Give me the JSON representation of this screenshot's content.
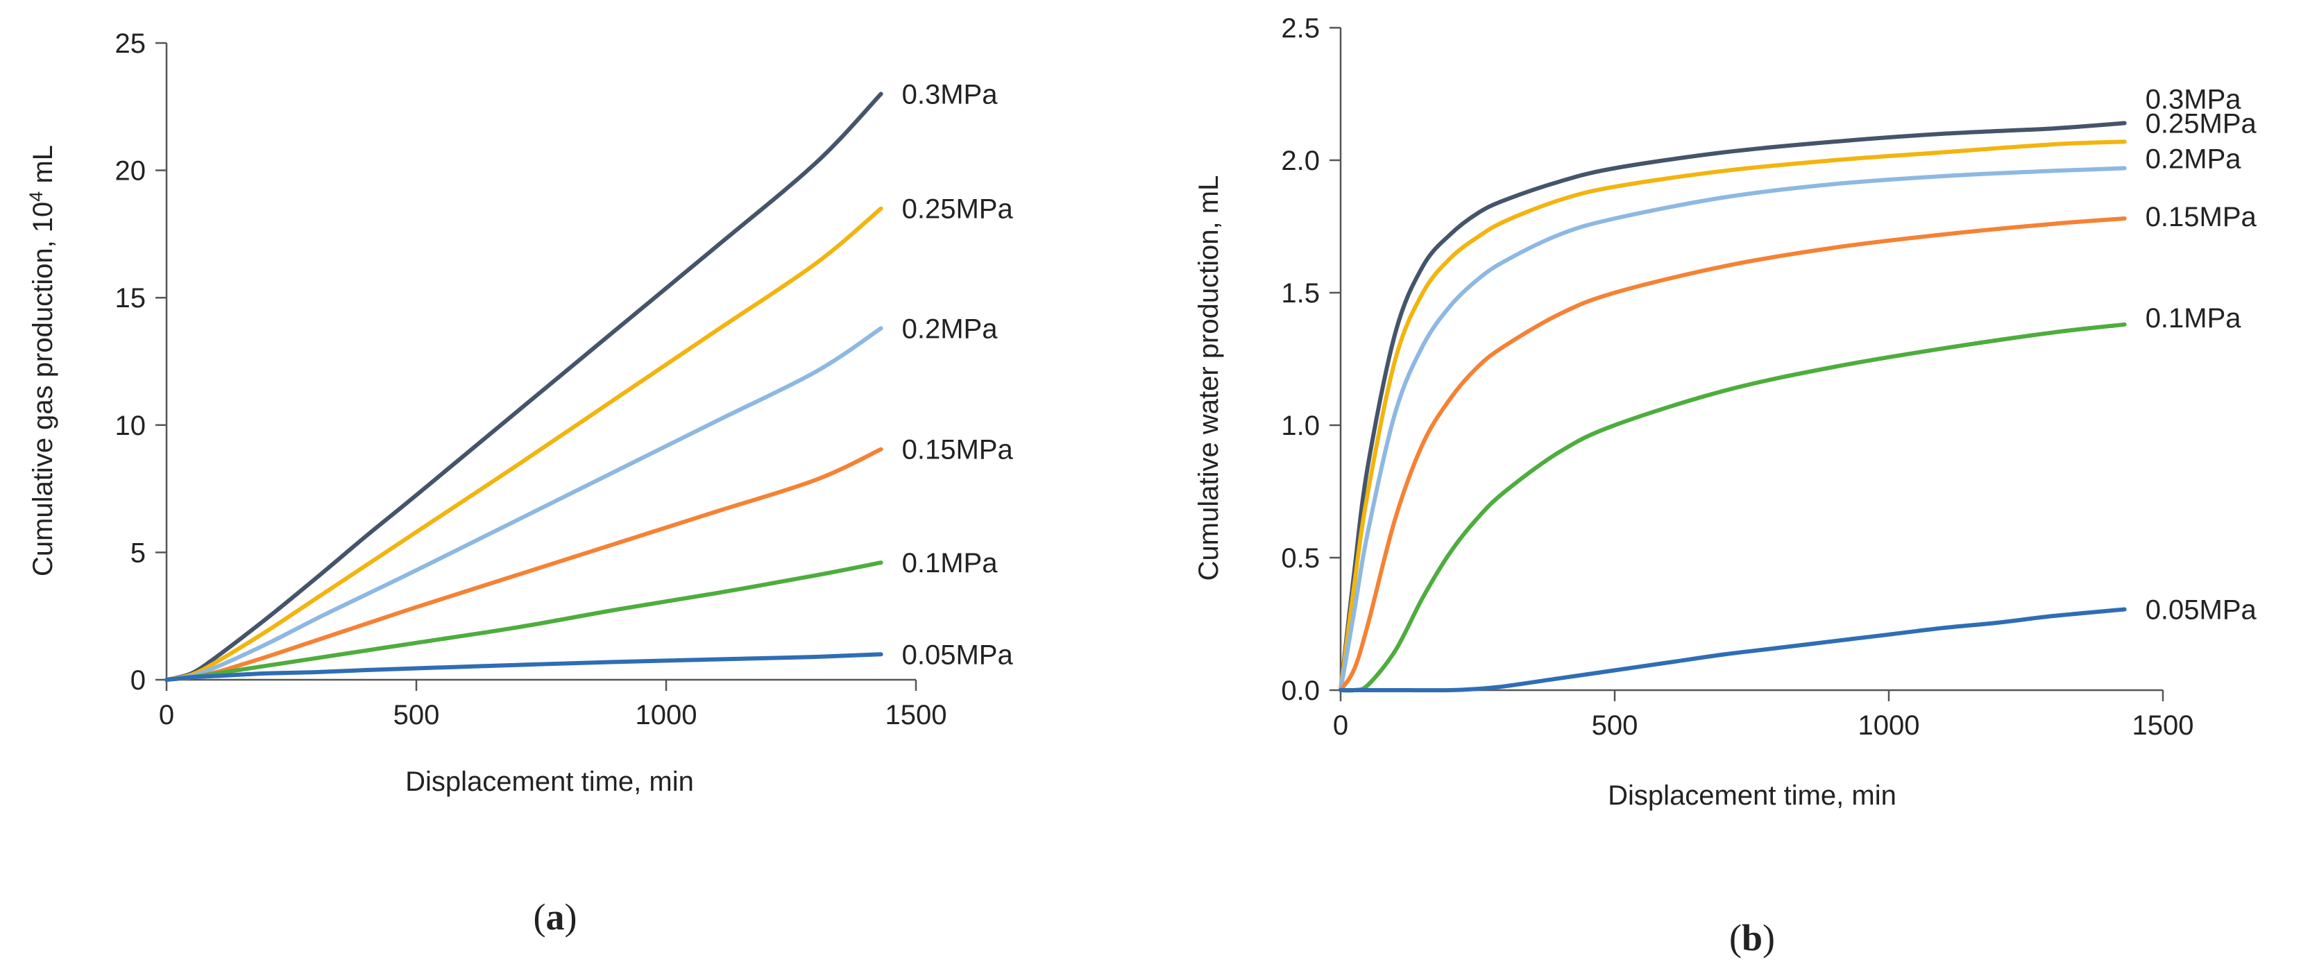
{
  "chart_data": [
    {
      "type": "line",
      "panel": "a",
      "panel_label": {
        "open": "(",
        "letter": "a",
        "close": ")"
      },
      "title": "",
      "xlabel": "Displacement time, min",
      "ylabel": {
        "prefix": "Cumulative gas production, 10",
        "sup": "4",
        "suffix": " mL"
      },
      "xlim": [
        0,
        1500
      ],
      "ylim": [
        0,
        25
      ],
      "xticks": [
        0,
        500,
        1000,
        1500
      ],
      "yticks": [
        0,
        5,
        10,
        15,
        20,
        25
      ],
      "xtick_labels": [
        "0",
        "500",
        "1000",
        "1500"
      ],
      "ytick_labels": [
        "0",
        "5",
        "10",
        "15",
        "20",
        "25"
      ],
      "grid": false,
      "legend": "inline labels at line ends (right)",
      "series": [
        {
          "name": "0.3MPa",
          "color": "#44546A",
          "x": [
            0,
            50,
            100,
            200,
            300,
            400,
            500,
            700,
            900,
            1100,
            1300,
            1430
          ],
          "y": [
            0,
            0.25,
            0.9,
            2.4,
            4.0,
            5.65,
            7.25,
            10.5,
            13.75,
            17.0,
            20.3,
            23.0
          ]
        },
        {
          "name": "0.25MPa",
          "color": "#F2B40E",
          "x": [
            0,
            50,
            100,
            200,
            300,
            400,
            500,
            700,
            900,
            1100,
            1300,
            1430
          ],
          "y": [
            0,
            0.2,
            0.7,
            1.9,
            3.2,
            4.5,
            5.8,
            8.4,
            11.05,
            13.7,
            16.35,
            18.5
          ]
        },
        {
          "name": "0.2MPa",
          "color": "#8DB8E2",
          "x": [
            0,
            50,
            100,
            200,
            300,
            400,
            500,
            700,
            900,
            1100,
            1300,
            1430
          ],
          "y": [
            0,
            0.15,
            0.5,
            1.4,
            2.4,
            3.35,
            4.3,
            6.25,
            8.2,
            10.15,
            12.1,
            13.8
          ]
        },
        {
          "name": "0.15MPa",
          "color": "#F58234",
          "x": [
            0,
            50,
            100,
            200,
            300,
            400,
            500,
            700,
            900,
            1100,
            1300,
            1430
          ],
          "y": [
            0,
            0.1,
            0.3,
            0.9,
            1.55,
            2.2,
            2.85,
            4.1,
            5.35,
            6.6,
            7.85,
            9.05
          ]
        },
        {
          "name": "0.1MPa",
          "color": "#4DAD3D",
          "x": [
            0,
            50,
            100,
            200,
            300,
            400,
            500,
            700,
            900,
            1100,
            1300,
            1430
          ],
          "y": [
            0,
            0.1,
            0.25,
            0.55,
            0.85,
            1.15,
            1.45,
            2.05,
            2.75,
            3.4,
            4.1,
            4.6
          ]
        },
        {
          "name": "0.05MPa",
          "color": "#2F6DB5",
          "x": [
            0,
            50,
            100,
            200,
            300,
            400,
            500,
            700,
            900,
            1100,
            1300,
            1430
          ],
          "y": [
            0,
            0.1,
            0.15,
            0.25,
            0.3,
            0.38,
            0.45,
            0.58,
            0.7,
            0.8,
            0.9,
            1.0
          ]
        }
      ]
    },
    {
      "type": "line",
      "panel": "b",
      "panel_label": {
        "open": "(",
        "letter": "b",
        "close": ")"
      },
      "title": "",
      "xlabel": "Displacement time, min",
      "ylabel": "Cumulative water production, mL",
      "xlim": [
        0,
        1500
      ],
      "ylim": [
        0,
        2.5
      ],
      "xticks": [
        0,
        500,
        1000,
        1500
      ],
      "yticks": [
        0.0,
        0.5,
        1.0,
        1.5,
        2.0,
        2.5
      ],
      "xtick_labels": [
        "0",
        "500",
        "1000",
        "1500"
      ],
      "ytick_labels": [
        "0.0",
        "0.5",
        "1.0",
        "1.5",
        "2.0",
        "2.5"
      ],
      "grid": false,
      "legend": "inline labels at line ends (right)",
      "series": [
        {
          "name": "0.3MPa",
          "color": "#44546A",
          "x": [
            0,
            25,
            50,
            100,
            150,
            200,
            250,
            300,
            400,
            500,
            700,
            900,
            1100,
            1300,
            1430
          ],
          "y": [
            0,
            0.45,
            0.85,
            1.35,
            1.6,
            1.72,
            1.8,
            1.85,
            1.92,
            1.97,
            2.03,
            2.07,
            2.1,
            2.12,
            2.14
          ]
        },
        {
          "name": "0.25MPa",
          "color": "#F2B40E",
          "x": [
            0,
            25,
            50,
            100,
            150,
            200,
            250,
            300,
            400,
            500,
            700,
            900,
            1100,
            1300,
            1430
          ],
          "y": [
            0,
            0.4,
            0.75,
            1.25,
            1.5,
            1.63,
            1.71,
            1.77,
            1.85,
            1.9,
            1.96,
            2.0,
            2.03,
            2.06,
            2.07
          ]
        },
        {
          "name": "0.2MPa",
          "color": "#8DB8E2",
          "x": [
            0,
            25,
            50,
            100,
            150,
            200,
            250,
            300,
            400,
            500,
            700,
            900,
            1100,
            1300,
            1430
          ],
          "y": [
            0,
            0.3,
            0.6,
            1.05,
            1.3,
            1.45,
            1.55,
            1.62,
            1.72,
            1.78,
            1.86,
            1.91,
            1.94,
            1.96,
            1.97
          ]
        },
        {
          "name": "0.15MPa",
          "color": "#F58234",
          "x": [
            0,
            25,
            50,
            100,
            150,
            200,
            250,
            300,
            400,
            500,
            700,
            900,
            1100,
            1300,
            1430
          ],
          "y": [
            0,
            0.08,
            0.25,
            0.65,
            0.93,
            1.1,
            1.22,
            1.3,
            1.42,
            1.5,
            1.6,
            1.67,
            1.72,
            1.76,
            1.78
          ]
        },
        {
          "name": "0.1MPa",
          "color": "#4DAD3D",
          "x": [
            0,
            25,
            50,
            100,
            150,
            200,
            250,
            300,
            400,
            500,
            700,
            900,
            1100,
            1300,
            1430
          ],
          "y": [
            0,
            0.0,
            0.02,
            0.15,
            0.35,
            0.52,
            0.65,
            0.75,
            0.9,
            1.0,
            1.13,
            1.22,
            1.29,
            1.35,
            1.38
          ]
        },
        {
          "name": "0.05MPa",
          "color": "#2F6DB5",
          "x": [
            0,
            100,
            200,
            250,
            300,
            400,
            500,
            600,
            700,
            800,
            900,
            1000,
            1100,
            1200,
            1300,
            1430
          ],
          "y": [
            0,
            0.0,
            0.0,
            0.005,
            0.015,
            0.045,
            0.075,
            0.105,
            0.135,
            0.16,
            0.185,
            0.21,
            0.235,
            0.255,
            0.28,
            0.305
          ]
        }
      ]
    }
  ]
}
